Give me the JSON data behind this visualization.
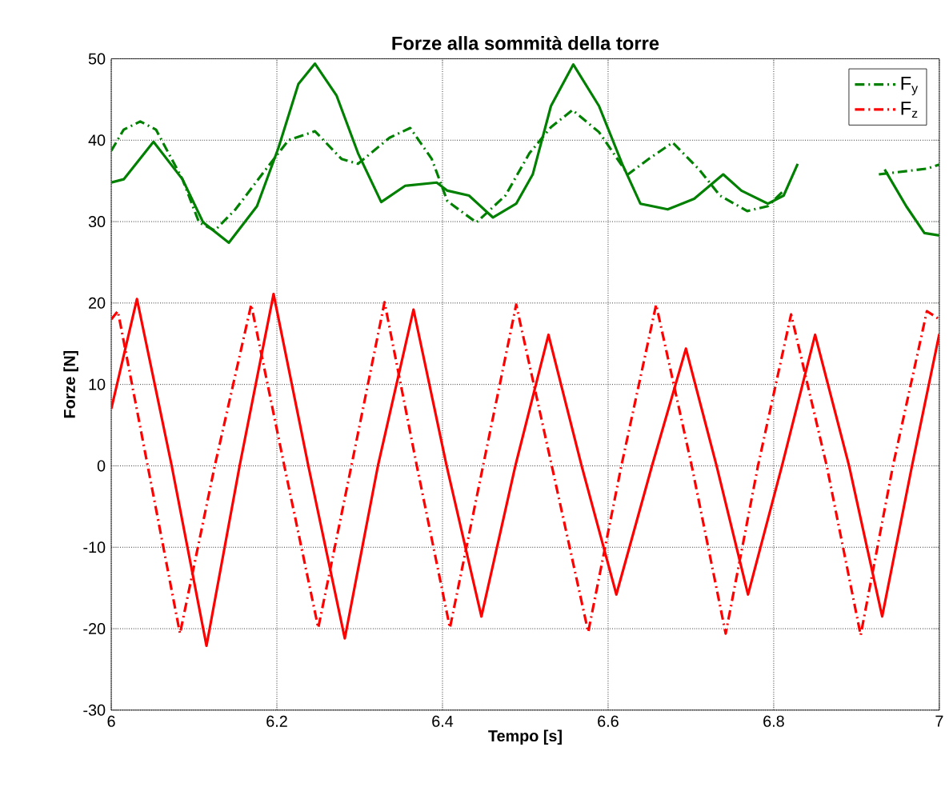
{
  "chart_data": {
    "type": "line",
    "title": "Forze alla sommità della torre",
    "xlabel": "Tempo [s]",
    "ylabel": "Forze [N]",
    "xlim": [
      6,
      7
    ],
    "ylim": [
      -30,
      50
    ],
    "xticks": [
      6,
      6.2,
      6.4,
      6.6,
      6.8,
      7
    ],
    "yticks": [
      -30,
      -20,
      -10,
      0,
      10,
      20,
      30,
      40,
      50
    ],
    "grid": true,
    "legend": "top right",
    "series": [
      {
        "color": "#008000",
        "line_style": "solid",
        "x": [
          6.0,
          6.015,
          6.051,
          6.086,
          6.111,
          6.142,
          6.176,
          6.202,
          6.226,
          6.246,
          6.272,
          6.298,
          6.326,
          6.355,
          6.393,
          6.406,
          6.432,
          6.461,
          6.489,
          6.509,
          6.531,
          6.558,
          6.589,
          6.617,
          6.639,
          6.672,
          6.704,
          6.739,
          6.761,
          6.793,
          6.812,
          6.829,
          6.87,
          6.934,
          6.96,
          6.982,
          7.0
        ],
        "values": [
          34.8,
          35.2,
          39.8,
          35.2,
          29.9,
          27.4,
          31.9,
          39.1,
          46.9,
          49.4,
          45.5,
          38.4,
          32.4,
          34.4,
          34.8,
          33.8,
          33.2,
          30.5,
          32.2,
          35.8,
          44.2,
          49.3,
          44.2,
          37.1,
          32.2,
          31.5,
          32.8,
          35.8,
          33.8,
          32.2,
          33.2,
          37.1,
          null,
          36.4,
          31.9,
          28.6,
          28.3
        ]
      },
      {
        "name": "F$_{y}$",
        "color": "#008000",
        "line_style": "dashdot",
        "x": [
          6.0,
          6.015,
          6.035,
          6.054,
          6.086,
          6.106,
          6.125,
          6.15,
          6.182,
          6.214,
          6.246,
          6.278,
          6.298,
          6.336,
          6.361,
          6.387,
          6.406,
          6.441,
          6.476,
          6.505,
          6.531,
          6.557,
          6.589,
          6.624,
          6.649,
          6.678,
          6.71,
          6.735,
          6.768,
          6.793,
          6.812,
          6.87,
          6.927,
          6.985,
          7.0
        ],
        "values": [
          38.7,
          41.3,
          42.3,
          41.3,
          35.2,
          29.9,
          28.9,
          31.5,
          35.8,
          40,
          41.1,
          37.7,
          37.1,
          40.3,
          41.5,
          37.7,
          32.5,
          29.9,
          33.2,
          38.4,
          41.6,
          43.7,
          41,
          35.8,
          37.7,
          39.7,
          36.4,
          33.2,
          31.3,
          31.9,
          33.8,
          null,
          35.8,
          36.5,
          37
        ]
      },
      {
        "color": "#ff0000",
        "line_style": "solid",
        "x": [
          6.0,
          6.031,
          6.073,
          6.115,
          6.155,
          6.196,
          6.238,
          6.282,
          6.322,
          6.365,
          6.405,
          6.447,
          6.488,
          6.528,
          6.568,
          6.61,
          6.653,
          6.694,
          6.731,
          6.769,
          6.81,
          6.85,
          6.891,
          6.931,
          6.967,
          7.0
        ],
        "values": [
          7,
          20.5,
          0,
          -22.1,
          0,
          21.1,
          0,
          -21.2,
          0,
          19.2,
          0,
          -18.5,
          0,
          16.1,
          0,
          -15.8,
          0,
          14.4,
          0,
          -15.8,
          0,
          16.1,
          0,
          -18.5,
          0,
          16.2
        ]
      },
      {
        "name": "F$_{z}$",
        "color": "#ff0000",
        "line_style": "dashdot",
        "x": [
          6.0,
          6.008,
          6.044,
          6.083,
          6.125,
          6.169,
          6.209,
          6.25,
          6.29,
          6.33,
          6.369,
          6.409,
          6.449,
          6.489,
          6.532,
          6.576,
          6.616,
          6.658,
          6.701,
          6.742,
          6.781,
          6.821,
          6.864,
          6.905,
          6.944,
          6.985,
          7.0
        ],
        "values": [
          18,
          19,
          0,
          -20.6,
          0,
          19.8,
          0,
          -19.9,
          0,
          20.1,
          0,
          -19.9,
          0,
          19.8,
          0,
          -20.4,
          0,
          19.8,
          0,
          -20.6,
          0,
          18.6,
          0,
          -20.8,
          0,
          19,
          18
        ]
      }
    ]
  }
}
